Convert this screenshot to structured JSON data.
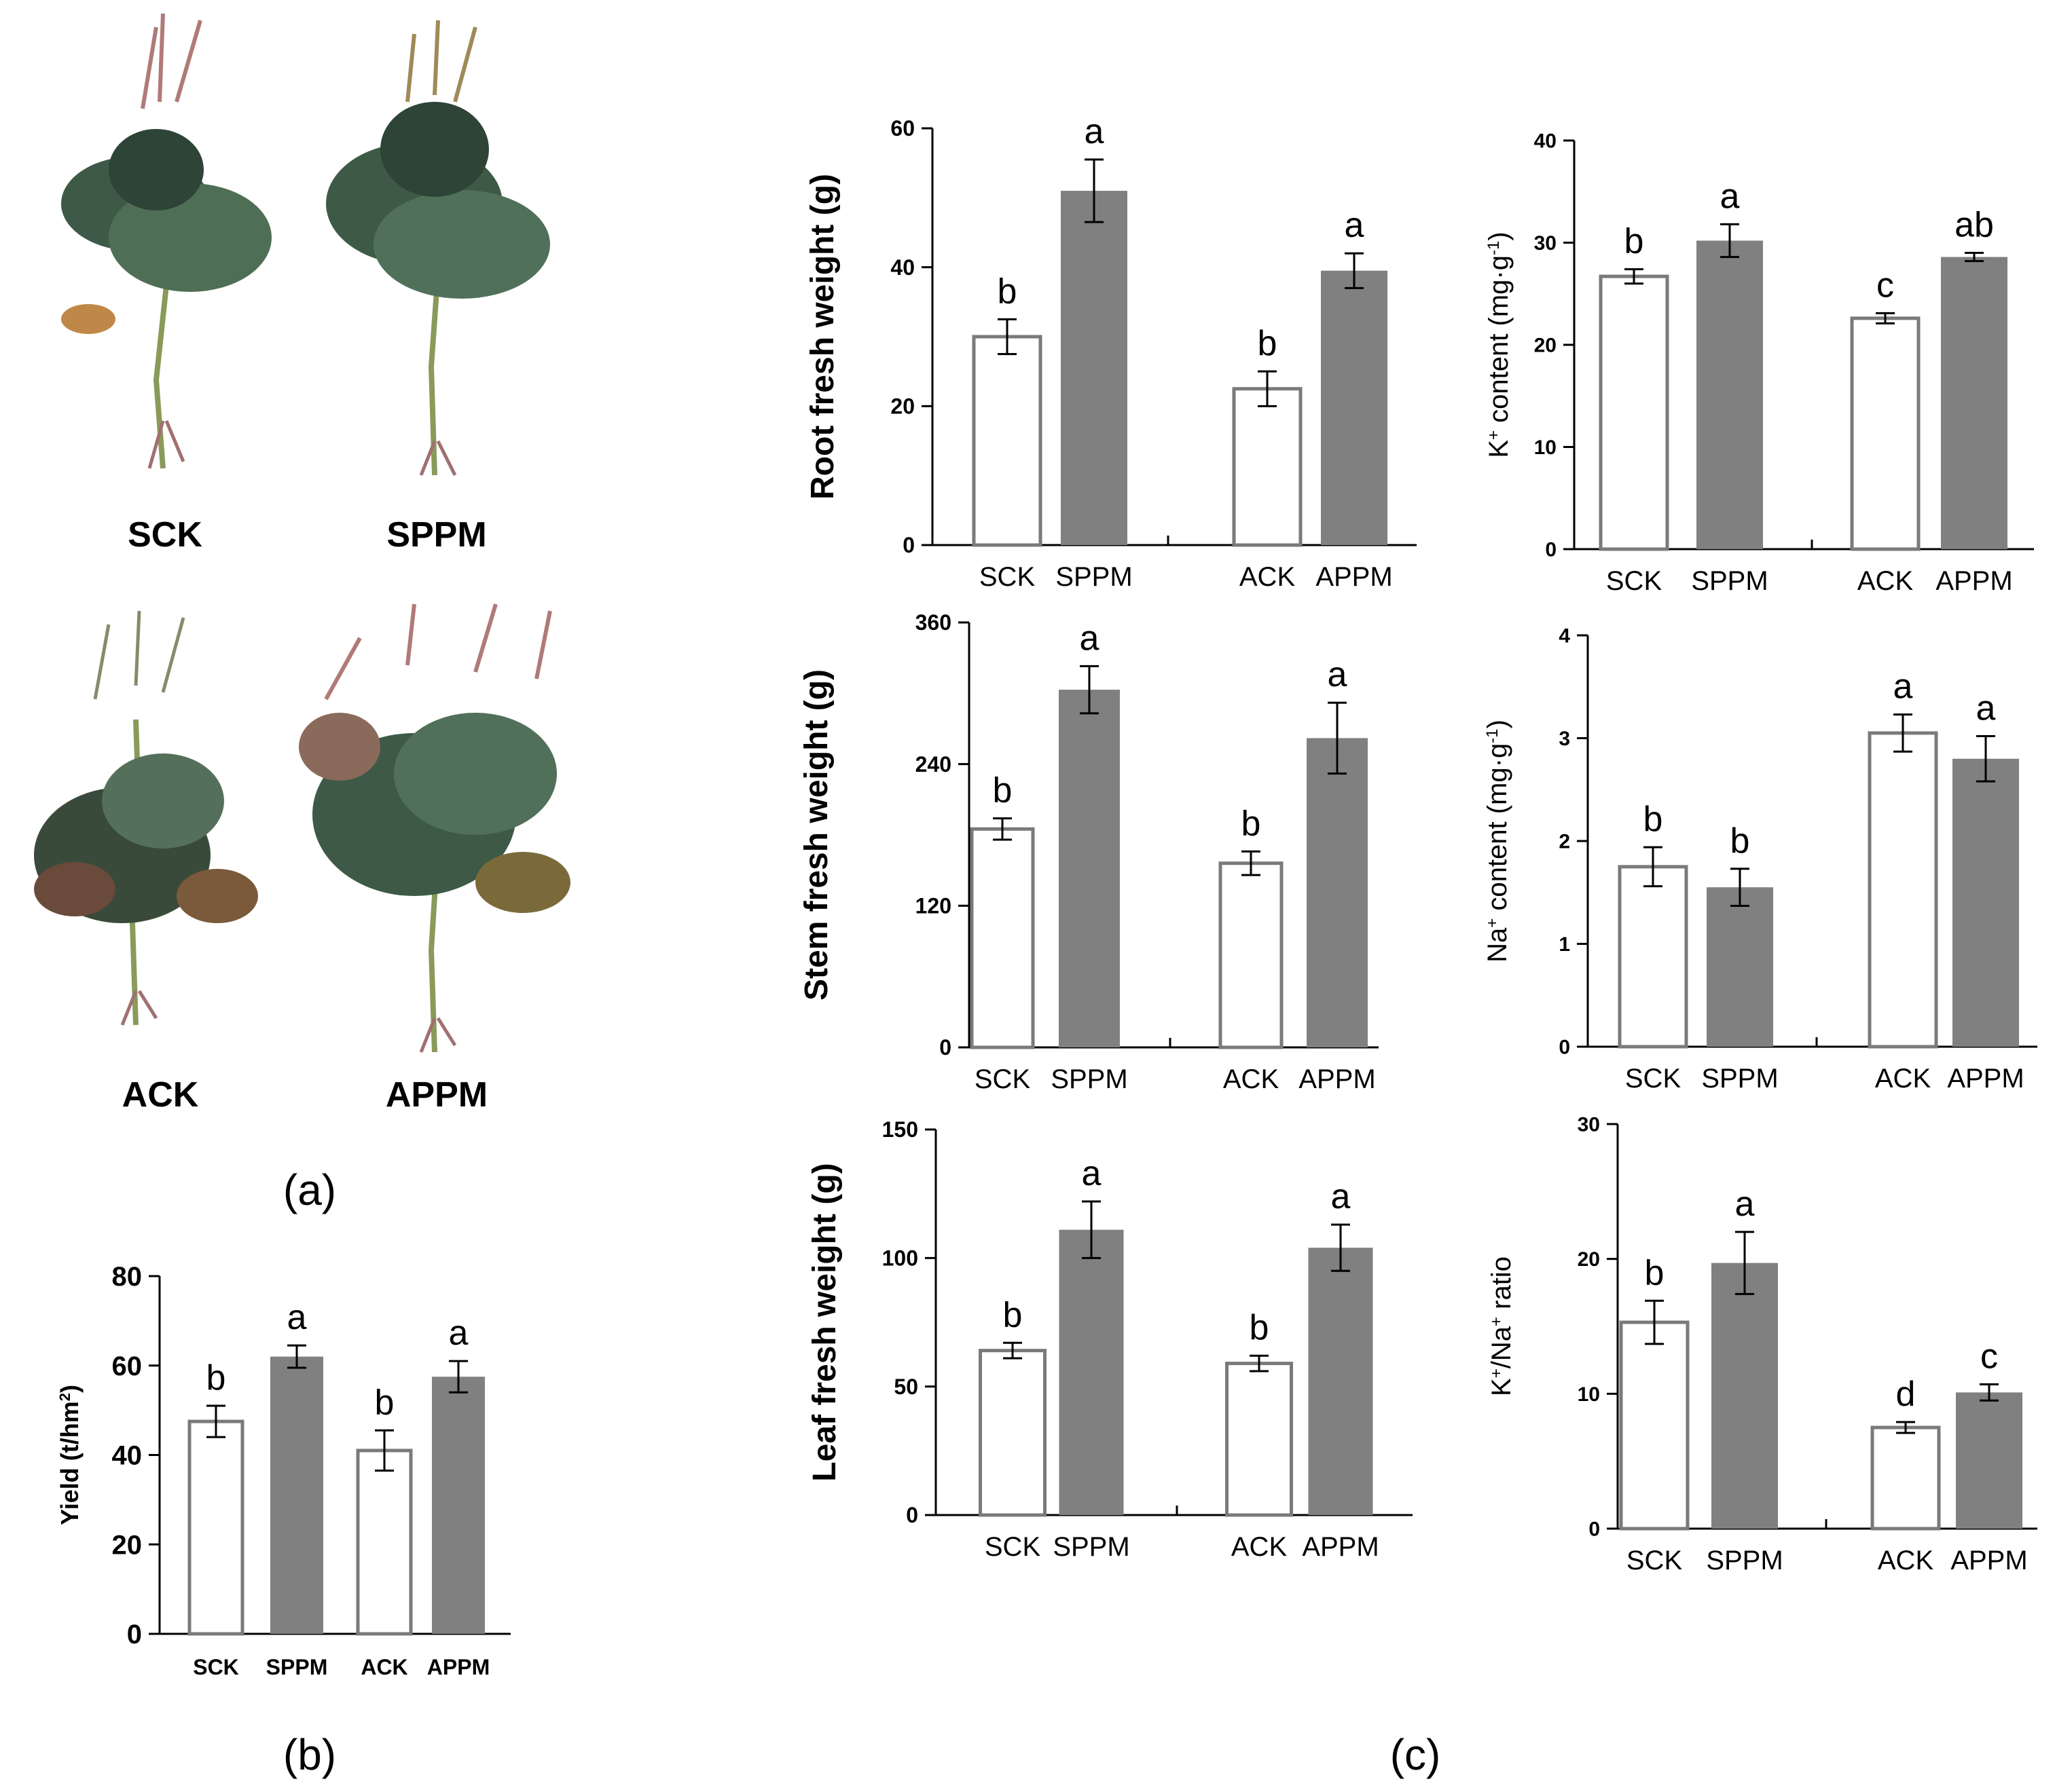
{
  "panel_labels": {
    "a": "(a)",
    "b": "(b)",
    "c": "(c)"
  },
  "photo_labels": [
    "SCK",
    "SPPM",
    "ACK",
    "APPM"
  ],
  "colors": {
    "control": "#ffffff",
    "treatment": "#808080",
    "axis": "#000000"
  },
  "chart_data": [
    {
      "id": "yield",
      "type": "bar",
      "title": "",
      "ylabel_parts": [
        "Yield  (t/hm",
        "2",
        ")"
      ],
      "categories": [
        "SCK",
        "SPPM",
        "ACK",
        "APPM"
      ],
      "values": [
        47.5,
        62,
        41,
        57.5
      ],
      "errors": [
        3.5,
        2.5,
        4.5,
        3.5
      ],
      "letters": [
        "b",
        "a",
        "b",
        "a"
      ],
      "ylim": [
        0,
        80
      ],
      "yticks": [
        0,
        20,
        40,
        60,
        80
      ],
      "grid": false
    },
    {
      "id": "root",
      "type": "bar",
      "title": "",
      "ylabel_parts": [
        "Root fresh weight (g)"
      ],
      "categories": [
        "SCK",
        "SPPM",
        "ACK",
        "APPM"
      ],
      "values": [
        30,
        51,
        22.5,
        39.5
      ],
      "errors": [
        2.5,
        4.5,
        2.5,
        2.5
      ],
      "letters": [
        "b",
        "a",
        "b",
        "a"
      ],
      "ylim": [
        0,
        60
      ],
      "yticks": [
        0,
        20,
        40,
        60
      ],
      "grid": false
    },
    {
      "id": "stem",
      "type": "bar",
      "title": "",
      "ylabel_parts": [
        "Stem fresh weight (g)"
      ],
      "categories": [
        "SCK",
        "SPPM",
        "ACK",
        "APPM"
      ],
      "values": [
        185,
        303,
        156,
        262
      ],
      "errors": [
        9,
        20,
        10,
        30
      ],
      "letters": [
        "b",
        "a",
        "b",
        "a"
      ],
      "ylim": [
        0,
        360
      ],
      "yticks": [
        0,
        120,
        240,
        360
      ],
      "grid": false
    },
    {
      "id": "leaf",
      "type": "bar",
      "title": "",
      "ylabel_parts": [
        "Leaf fresh weight (g)"
      ],
      "categories": [
        "SCK",
        "SPPM",
        "ACK",
        "APPM"
      ],
      "values": [
        64,
        111,
        59,
        104
      ],
      "errors": [
        3,
        11,
        3,
        9
      ],
      "letters": [
        "b",
        "a",
        "b",
        "a"
      ],
      "ylim": [
        0,
        150
      ],
      "yticks": [
        0,
        50,
        100,
        150
      ],
      "grid": false
    },
    {
      "id": "k",
      "type": "bar",
      "title": "",
      "ylabel_parts": [
        "K",
        "+",
        " content (mg·g",
        "-1",
        ")"
      ],
      "categories": [
        "SCK",
        "SPPM",
        "ACK",
        "APPM"
      ],
      "values": [
        26.7,
        30.2,
        22.6,
        28.6
      ],
      "errors": [
        0.7,
        1.6,
        0.5,
        0.4
      ],
      "letters": [
        "b",
        "a",
        "c",
        "ab"
      ],
      "ylim": [
        0,
        40
      ],
      "yticks": [
        0,
        10,
        20,
        30,
        40
      ],
      "grid": false
    },
    {
      "id": "na",
      "type": "bar",
      "title": "",
      "ylabel_parts": [
        "Na",
        "+",
        " content (mg·g",
        "-1",
        ")"
      ],
      "categories": [
        "SCK",
        "SPPM",
        "ACK",
        "APPM"
      ],
      "values": [
        1.75,
        1.55,
        3.05,
        2.8
      ],
      "errors": [
        0.19,
        0.18,
        0.18,
        0.22
      ],
      "letters": [
        "b",
        "b",
        "a",
        "a"
      ],
      "ylim": [
        0,
        4
      ],
      "yticks": [
        0,
        1,
        2,
        3,
        4
      ],
      "grid": false
    },
    {
      "id": "ratio",
      "type": "bar",
      "title": "",
      "ylabel_parts": [
        "K",
        "+",
        "/Na",
        "+",
        " ratio"
      ],
      "categories": [
        "SCK",
        "SPPM",
        "ACK",
        "APPM"
      ],
      "values": [
        15.3,
        19.7,
        7.5,
        10.1
      ],
      "errors": [
        1.6,
        2.3,
        0.4,
        0.6
      ],
      "letters": [
        "b",
        "a",
        "d",
        "c"
      ],
      "ylim": [
        0,
        30
      ],
      "yticks": [
        0,
        10,
        20,
        30
      ],
      "grid": false
    }
  ]
}
